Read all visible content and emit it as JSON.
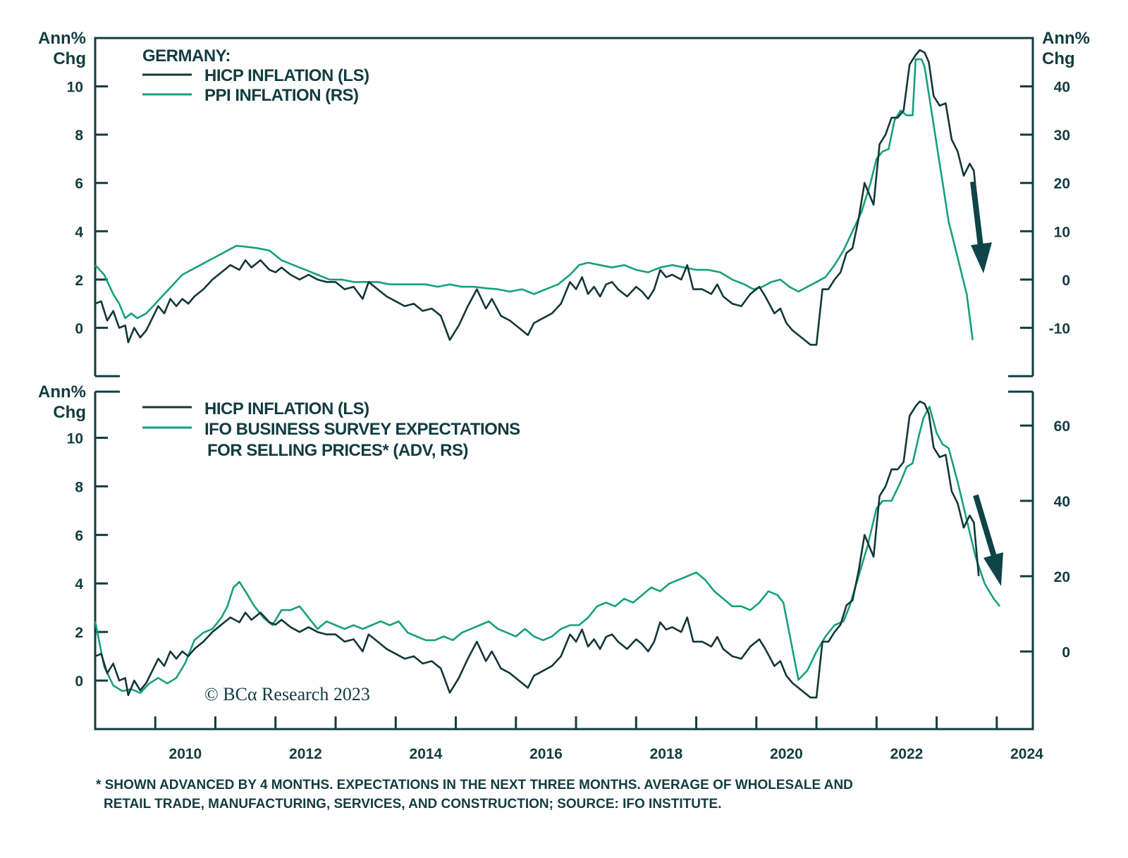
{
  "chart_data": [
    {
      "type": "line",
      "panel": "top",
      "title": "GERMANY:",
      "ylabel_left": "Ann% Chg",
      "ylabel_right": "Ann% Chg",
      "ylim_left": [
        -2,
        12
      ],
      "ylim_right": [
        -20,
        50
      ],
      "yticks_left": [
        0,
        2,
        4,
        6,
        8,
        10
      ],
      "yticks_right": [
        -10,
        0,
        10,
        20,
        30,
        40
      ],
      "xlim": [
        2009.0,
        2024.6
      ],
      "legend": [
        "HICP INFLATION (LS)",
        "PPI INFLATION (RS)"
      ],
      "legend_position": "top-left",
      "series": [
        {
          "name": "HICP INFLATION (LS)",
          "axis": "left",
          "color": "#12363a",
          "x": [
            2009.0,
            2009.1,
            2009.2,
            2009.3,
            2009.4,
            2009.5,
            2009.55,
            2009.65,
            2009.75,
            2009.85,
            2009.95,
            2010.05,
            2010.15,
            2010.25,
            2010.35,
            2010.45,
            2010.55,
            2010.65,
            2010.8,
            2010.95,
            2011.1,
            2011.25,
            2011.4,
            2011.5,
            2011.6,
            2011.75,
            2011.9,
            2012.0,
            2012.1,
            2012.25,
            2012.4,
            2012.55,
            2012.7,
            2012.85,
            2013.0,
            2013.15,
            2013.3,
            2013.45,
            2013.55,
            2013.7,
            2013.85,
            2014.0,
            2014.15,
            2014.3,
            2014.45,
            2014.6,
            2014.75,
            2014.9,
            2015.05,
            2015.2,
            2015.35,
            2015.5,
            2015.6,
            2015.75,
            2015.9,
            2016.05,
            2016.2,
            2016.3,
            2016.45,
            2016.6,
            2016.75,
            2016.9,
            2017.0,
            2017.1,
            2017.2,
            2017.3,
            2017.4,
            2017.5,
            2017.6,
            2017.7,
            2017.85,
            2018.0,
            2018.1,
            2018.2,
            2018.3,
            2018.4,
            2018.5,
            2018.6,
            2018.75,
            2018.85,
            2018.95,
            2019.1,
            2019.25,
            2019.35,
            2019.45,
            2019.6,
            2019.75,
            2019.9,
            2020.05,
            2020.15,
            2020.3,
            2020.4,
            2020.5,
            2020.6,
            2020.75,
            2020.9,
            2021.0,
            2021.1,
            2021.2,
            2021.3,
            2021.4,
            2021.5,
            2021.6,
            2021.7,
            2021.8,
            2021.95,
            2022.05,
            2022.15,
            2022.25,
            2022.35,
            2022.45,
            2022.55,
            2022.65,
            2022.72,
            2022.8,
            2022.87,
            2022.95,
            2023.05,
            2023.15,
            2023.25,
            2023.35,
            2023.45,
            2023.55,
            2023.62,
            2023.7
          ],
          "values": [
            1.0,
            1.1,
            0.3,
            0.7,
            0.0,
            0.1,
            -0.6,
            0.0,
            -0.4,
            -0.1,
            0.4,
            0.9,
            0.6,
            1.2,
            0.9,
            1.2,
            1.0,
            1.3,
            1.6,
            2.0,
            2.3,
            2.6,
            2.4,
            2.8,
            2.5,
            2.8,
            2.4,
            2.3,
            2.5,
            2.2,
            2.0,
            2.2,
            2.0,
            1.9,
            1.9,
            1.6,
            1.7,
            1.2,
            1.9,
            1.6,
            1.3,
            1.1,
            0.9,
            1.0,
            0.7,
            0.8,
            0.5,
            -0.5,
            0.1,
            0.9,
            1.6,
            0.8,
            1.2,
            0.5,
            0.3,
            0.0,
            -0.3,
            0.2,
            0.4,
            0.6,
            1.0,
            1.9,
            1.6,
            2.1,
            1.4,
            1.7,
            1.3,
            1.8,
            1.9,
            1.6,
            1.3,
            1.7,
            1.5,
            1.2,
            1.6,
            2.4,
            2.1,
            2.2,
            2.0,
            2.6,
            1.6,
            1.6,
            1.4,
            1.8,
            1.3,
            1.0,
            0.9,
            1.4,
            1.7,
            1.3,
            0.6,
            0.8,
            0.2,
            -0.1,
            -0.4,
            -0.7,
            -0.7,
            1.6,
            1.6,
            2.0,
            2.3,
            3.1,
            3.3,
            4.5,
            6.0,
            5.1,
            7.6,
            8.0,
            8.7,
            8.7,
            9.0,
            10.9,
            11.3,
            11.5,
            11.4,
            11.0,
            9.6,
            9.2,
            9.3,
            7.8,
            7.3,
            6.3,
            6.8,
            6.5,
            4.3
          ]
        },
        {
          "name": "PPI INFLATION (RS)",
          "axis": "right",
          "color": "#16a07a",
          "x": [
            2009.0,
            2009.15,
            2009.3,
            2009.4,
            2009.5,
            2009.6,
            2009.7,
            2009.85,
            2010.0,
            2010.15,
            2010.3,
            2010.45,
            2010.6,
            2010.75,
            2010.9,
            2011.05,
            2011.2,
            2011.35,
            2011.5,
            2011.7,
            2011.9,
            2012.1,
            2012.3,
            2012.5,
            2012.7,
            2012.9,
            2013.1,
            2013.3,
            2013.5,
            2013.7,
            2013.9,
            2014.1,
            2014.3,
            2014.5,
            2014.7,
            2014.9,
            2015.1,
            2015.3,
            2015.5,
            2015.7,
            2015.9,
            2016.1,
            2016.3,
            2016.5,
            2016.7,
            2016.9,
            2017.05,
            2017.2,
            2017.4,
            2017.6,
            2017.8,
            2018.0,
            2018.2,
            2018.4,
            2018.6,
            2018.8,
            2019.0,
            2019.2,
            2019.4,
            2019.6,
            2019.8,
            2019.95,
            2020.1,
            2020.25,
            2020.4,
            2020.55,
            2020.7,
            2020.85,
            2021.0,
            2021.15,
            2021.3,
            2021.45,
            2021.6,
            2021.75,
            2021.9,
            2022.0,
            2022.1,
            2022.2,
            2022.3,
            2022.4,
            2022.5,
            2022.6,
            2022.65,
            2022.75,
            2022.8,
            2022.9,
            2023.0,
            2023.1,
            2023.2,
            2023.3,
            2023.4,
            2023.5,
            2023.6
          ],
          "values": [
            3,
            1,
            -3,
            -5,
            -8,
            -7,
            -8,
            -7,
            -5,
            -3,
            -1,
            1,
            2,
            3,
            4,
            5,
            6,
            7,
            6.8,
            6.5,
            6,
            4,
            3,
            2,
            1,
            0,
            0,
            -0.5,
            -0.5,
            -0.5,
            -1,
            -1,
            -1,
            -1,
            -1.5,
            -1,
            -1.5,
            -1.5,
            -1.8,
            -2,
            -2.5,
            -2,
            -3,
            -2,
            -1,
            1,
            3,
            3.5,
            3,
            2.5,
            3,
            2,
            1.5,
            2.5,
            3,
            2.5,
            2,
            2,
            1.5,
            0,
            -1,
            -2,
            -1.5,
            -0.5,
            0,
            -1.5,
            -2.5,
            -1.5,
            -0.5,
            0.5,
            3,
            6,
            10,
            14,
            20,
            25,
            26.5,
            27,
            33,
            35,
            34,
            34,
            45.6,
            45.6,
            44,
            36,
            28,
            20,
            12,
            7,
            2,
            -3,
            -12.5
          ]
        }
      ],
      "annotations": [
        "down-arrow"
      ]
    },
    {
      "type": "line",
      "panel": "bottom",
      "ylabel_left": "Ann% Chg",
      "ylim_left": [
        -2,
        11.9
      ],
      "ylim_right": [
        -20.6,
        69.0
      ],
      "yticks_left": [
        0,
        2,
        4,
        6,
        8,
        10
      ],
      "yticks_right": [
        0,
        20,
        40,
        60
      ],
      "xlim": [
        2009.0,
        2024.6
      ],
      "xticks": [
        "2010",
        "2012",
        "2014",
        "2016",
        "2018",
        "2020",
        "2022",
        "2024"
      ],
      "legend": [
        "HICP INFLATION (LS)",
        "IFO BUSINESS SURVEY EXPECTATIONS",
        "FOR SELLING PRICES* (ADV, RS)"
      ],
      "legend_position": "top-left",
      "series": [
        {
          "name": "HICP INFLATION (LS)",
          "axis": "left",
          "color": "#12363a",
          "same_as": "top.HICP INFLATION (LS)"
        },
        {
          "name": "IFO BUSINESS SURVEY EXPECTATIONS FOR SELLING PRICES* (ADV, RS)",
          "axis": "right",
          "color": "#16a07a",
          "x": [
            2009.0,
            2009.15,
            2009.3,
            2009.45,
            2009.6,
            2009.75,
            2009.9,
            2010.05,
            2010.2,
            2010.35,
            2010.5,
            2010.65,
            2010.8,
            2010.95,
            2011.1,
            2011.2,
            2011.3,
            2011.4,
            2011.5,
            2011.65,
            2011.8,
            2011.95,
            2012.1,
            2012.25,
            2012.4,
            2012.55,
            2012.7,
            2012.85,
            2013.0,
            2013.15,
            2013.3,
            2013.45,
            2013.6,
            2013.75,
            2013.9,
            2014.05,
            2014.2,
            2014.35,
            2014.5,
            2014.65,
            2014.8,
            2014.95,
            2015.1,
            2015.25,
            2015.4,
            2015.55,
            2015.7,
            2015.85,
            2016.0,
            2016.15,
            2016.3,
            2016.45,
            2016.6,
            2016.75,
            2016.9,
            2017.05,
            2017.2,
            2017.35,
            2017.5,
            2017.65,
            2017.8,
            2017.95,
            2018.1,
            2018.25,
            2018.4,
            2018.55,
            2018.7,
            2018.85,
            2019.0,
            2019.15,
            2019.3,
            2019.45,
            2019.6,
            2019.75,
            2019.9,
            2020.05,
            2020.2,
            2020.35,
            2020.45,
            2020.7,
            2020.85,
            2021.0,
            2021.15,
            2021.3,
            2021.45,
            2021.55,
            2021.7,
            2021.85,
            2022.0,
            2022.1,
            2022.25,
            2022.4,
            2022.5,
            2022.6,
            2022.7,
            2022.78,
            2022.88,
            2023.0,
            2023.1,
            2023.2,
            2023.35,
            2023.5,
            2023.65,
            2023.8,
            2023.95,
            2024.05
          ],
          "values": [
            8,
            -4,
            -9,
            -10.5,
            -10,
            -11,
            -8.5,
            -7,
            -8.5,
            -7,
            -3,
            3,
            5,
            6,
            9,
            12,
            17,
            18.5,
            16,
            12,
            9,
            7,
            11,
            11,
            12,
            9,
            6,
            8,
            7,
            6,
            7,
            6,
            7,
            8,
            7,
            8,
            5,
            4,
            3,
            3,
            4,
            3,
            5,
            6,
            7,
            8,
            6,
            5,
            4,
            6,
            4,
            3,
            4,
            6,
            7,
            7,
            9,
            12,
            13,
            12,
            14,
            13,
            15,
            17,
            16,
            18,
            19,
            20,
            21,
            19,
            16,
            14,
            12,
            12,
            11,
            13,
            16,
            15,
            13,
            -7.5,
            -5,
            0,
            4,
            7,
            8,
            12,
            20,
            28,
            38,
            40,
            40,
            45,
            49,
            50,
            57,
            62,
            65,
            58,
            55,
            54,
            45,
            35,
            25,
            18,
            14,
            12
          ]
        }
      ],
      "annotations": [
        "down-arrow"
      ]
    }
  ],
  "labels": {
    "unit_line1": "Ann%",
    "unit_line2": "Chg",
    "top_title": "GERMANY:",
    "top_legend_1": "HICP INFLATION (LS)",
    "top_legend_2": "PPI INFLATION (RS)",
    "bottom_legend_1": "HICP INFLATION (LS)",
    "bottom_legend_2a": "IFO BUSINESS SURVEY EXPECTATIONS",
    "bottom_legend_2b": "FOR SELLING PRICES* (ADV, RS)",
    "copyright": "© BCα Research 2023",
    "footnote_1": "* SHOWN ADVANCED BY 4 MONTHS. EXPECTATIONS IN THE NEXT THREE MONTHS. AVERAGE OF WHOLESALE AND",
    "footnote_2": "RETAIL TRADE, MANUFACTURING, SERVICES, AND CONSTRUCTION; SOURCE: IFO INSTITUTE."
  },
  "colors": {
    "axis": "#123c40",
    "hicp": "#12363a",
    "green": "#16a07a"
  }
}
